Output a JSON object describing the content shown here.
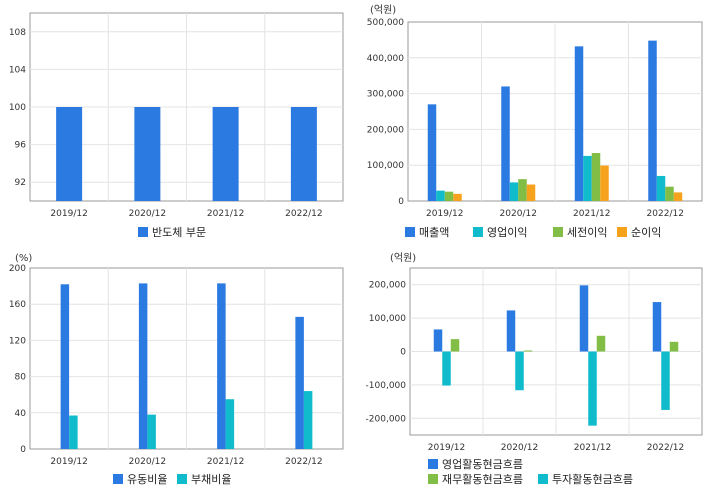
{
  "colors": {
    "blue": "#2a7ae2",
    "cyan": "#10bccc",
    "green": "#82bd45",
    "orange": "#f7a21c",
    "grid": "#e4e4e4",
    "frame": "#9a9a9a"
  },
  "chart_data": [
    {
      "type": "bar",
      "unit": "",
      "categories": [
        "2019/12",
        "2020/12",
        "2021/12",
        "2022/12"
      ],
      "series": [
        {
          "name": "반도체 부문",
          "color": "#2a7ae2",
          "values": [
            100,
            100,
            100,
            100
          ]
        }
      ],
      "ylim": [
        90,
        110
      ],
      "yticks": [
        92,
        96,
        100,
        104,
        108
      ],
      "ytick_labels": [
        "92",
        "96",
        "100",
        "104",
        "108"
      ],
      "grid": true,
      "legend": "bottom"
    },
    {
      "type": "bar",
      "unit": "(억원)",
      "categories": [
        "2019/12",
        "2020/12",
        "2021/12",
        "2022/12"
      ],
      "series": [
        {
          "name": "매출액",
          "color": "#2a7ae2",
          "values": [
            270000,
            320000,
            432000,
            448000
          ]
        },
        {
          "name": "영업이익",
          "color": "#10bccc",
          "values": [
            29000,
            52000,
            126000,
            70000
          ]
        },
        {
          "name": "세전이익",
          "color": "#82bd45",
          "values": [
            26000,
            61000,
            134000,
            40000
          ]
        },
        {
          "name": "순이익",
          "color": "#f7a21c",
          "values": [
            20000,
            46000,
            99000,
            24000
          ]
        }
      ],
      "ylim": [
        0,
        500000
      ],
      "yticks": [
        0,
        100000,
        200000,
        300000,
        400000,
        500000
      ],
      "ytick_labels": [
        "0",
        "100,000",
        "200,000",
        "300,000",
        "400,000",
        "500,000"
      ],
      "grid": true,
      "legend": "bottom"
    },
    {
      "type": "bar",
      "unit": "(%)",
      "categories": [
        "2019/12",
        "2020/12",
        "2021/12",
        "2022/12"
      ],
      "series": [
        {
          "name": "유동비율",
          "color": "#2a7ae2",
          "values": [
            182,
            183,
            183,
            146
          ]
        },
        {
          "name": "부채비율",
          "color": "#10bccc",
          "values": [
            37,
            38,
            55,
            64
          ]
        }
      ],
      "ylim": [
        0,
        200
      ],
      "yticks": [
        0,
        40,
        80,
        120,
        160,
        200
      ],
      "ytick_labels": [
        "0",
        "40",
        "80",
        "120",
        "160",
        "200"
      ],
      "grid": true,
      "legend": "bottom"
    },
    {
      "type": "bar",
      "unit": "(억원)",
      "categories": [
        "2019/12",
        "2020/12",
        "2021/12",
        "2022/12"
      ],
      "series": [
        {
          "name": "영업활동현금흐름",
          "color": "#2a7ae2",
          "values": [
            66000,
            123000,
            198000,
            148000
          ]
        },
        {
          "name": "투자활동현금흐름",
          "color": "#10bccc",
          "values": [
            -102000,
            -116000,
            -222000,
            -175000
          ]
        },
        {
          "name": "재무활동현금흐름",
          "color": "#82bd45",
          "values": [
            37000,
            3000,
            47000,
            29000
          ]
        }
      ],
      "ylim": [
        -250000,
        250000
      ],
      "yticks": [
        -200000,
        -100000,
        0,
        100000,
        200000
      ],
      "ytick_labels": [
        "-200,000",
        "-100,000",
        "0",
        "100,000",
        "200,000"
      ],
      "grid": true,
      "legend": "bottom"
    }
  ]
}
